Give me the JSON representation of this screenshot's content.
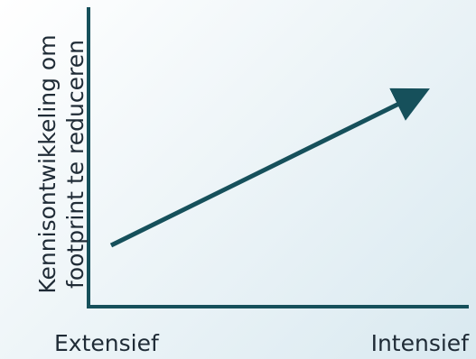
{
  "diagram": {
    "y_axis_label": {
      "line1": "Kennisontwikkeling om",
      "line2": "footprint te reduceren"
    },
    "x_axis_labels": {
      "left": "Extensief",
      "right": "Intensief"
    },
    "colors": {
      "axis": "#16505b",
      "arrow": "#16505b",
      "text": "#1f2b36"
    }
  }
}
